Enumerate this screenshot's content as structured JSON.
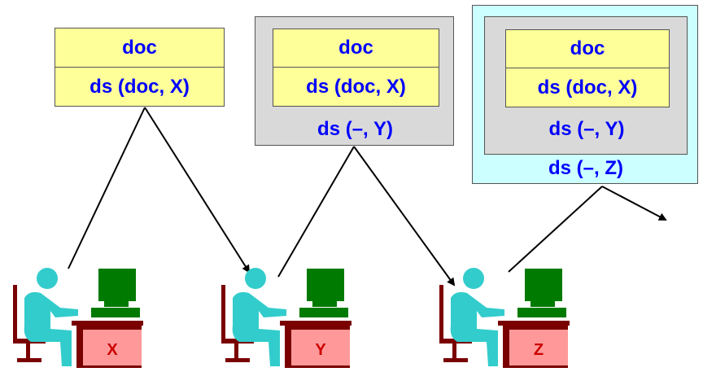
{
  "boxes": [
    {
      "doc": "doc",
      "sigs": [
        "ds (doc, X)"
      ]
    },
    {
      "doc": "doc",
      "sigs": [
        "ds (doc, X)",
        "ds (–, Y)"
      ]
    },
    {
      "doc": "doc",
      "sigs": [
        "ds (doc, X)",
        "ds (–, Y)",
        "ds (–, Z)"
      ]
    }
  ],
  "users": [
    {
      "label": "X"
    },
    {
      "label": "Y"
    },
    {
      "label": "Z"
    }
  ],
  "colors": {
    "text": "#0000ff",
    "cell_fill": "#ffff99",
    "gray_fill": "#d9d9d9",
    "cyan_fill": "#ccffff",
    "person": "#33cccc",
    "computer": "#007a00",
    "desk": "#7a0000",
    "label_fill": "#ff9999",
    "label_text": "#cc0000"
  },
  "icons": [
    "person-icon",
    "computer-icon",
    "desk-icon",
    "chair-icon"
  ]
}
